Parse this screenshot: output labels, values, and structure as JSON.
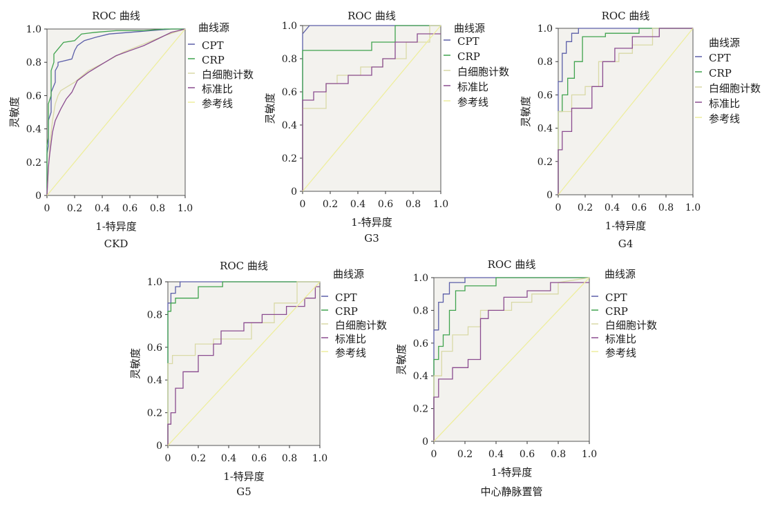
{
  "legend_title": "曲线源",
  "chart_title_text": "ROC 曲线",
  "ylabel": "灵敏度",
  "xlabel": "1-特异度",
  "colors": {
    "CPT": "#5b5ea8",
    "CRP": "#3fa34d",
    "white_blood_cell": "#d9d9a6",
    "ratio": "#8a4b8f",
    "reference": "#eeee9e",
    "plot_bg": "#f3f2ee"
  },
  "chart_data": [
    {
      "type": "line",
      "title": "ROC 曲线",
      "subtitle": "CKD",
      "xlabel": "1-特异度",
      "ylabel": "灵敏度",
      "xlim": [
        0,
        1
      ],
      "ylim": [
        0,
        1
      ],
      "x_ticks": [
        "0",
        "0.2",
        "0.4",
        "0.6",
        "0.8",
        "1.0"
      ],
      "y_ticks": [
        "0",
        "0.2",
        "0.4",
        "0.6",
        "0.8",
        "1.0"
      ],
      "legend_position": "right",
      "legend": [
        "CPT",
        "CRP",
        "白细胞计数",
        "标准比",
        "参考线"
      ],
      "series": [
        {
          "name": "CPT",
          "x": [
            0,
            0,
            0.01,
            0.01,
            0.03,
            0.03,
            0.06,
            0.06,
            0.08,
            0.08,
            0.18,
            0.2,
            0.22,
            0.27,
            0.35,
            0.45,
            0.6,
            0.75,
            0.9,
            1.0
          ],
          "y": [
            0,
            0.25,
            0.3,
            0.45,
            0.5,
            0.62,
            0.68,
            0.75,
            0.78,
            0.8,
            0.82,
            0.87,
            0.9,
            0.93,
            0.95,
            0.97,
            0.98,
            0.99,
            1.0,
            1.0
          ]
        },
        {
          "name": "CRP",
          "x": [
            0,
            0,
            0.01,
            0.01,
            0.03,
            0.03,
            0.05,
            0.05,
            0.08,
            0.12,
            0.2,
            0.25,
            0.35,
            0.5,
            0.7,
            0.85,
            1.0
          ],
          "y": [
            0,
            0.3,
            0.35,
            0.55,
            0.6,
            0.75,
            0.8,
            0.85,
            0.88,
            0.92,
            0.93,
            0.97,
            0.98,
            0.99,
            0.99,
            1.0,
            1.0
          ]
        },
        {
          "name": "白细胞计数",
          "x": [
            0,
            0.02,
            0.04,
            0.06,
            0.08,
            0.1,
            0.14,
            0.2,
            0.3,
            0.42,
            0.55,
            0.7,
            0.85,
            1.0
          ],
          "y": [
            0,
            0.3,
            0.45,
            0.55,
            0.6,
            0.63,
            0.65,
            0.68,
            0.75,
            0.8,
            0.86,
            0.91,
            0.96,
            1.0
          ]
        },
        {
          "name": "标准比",
          "x": [
            0,
            0.01,
            0.02,
            0.04,
            0.06,
            0.1,
            0.14,
            0.18,
            0.22,
            0.3,
            0.4,
            0.5,
            0.6,
            0.7,
            0.8,
            0.9,
            1.0
          ],
          "y": [
            0,
            0.17,
            0.25,
            0.38,
            0.45,
            0.52,
            0.58,
            0.62,
            0.69,
            0.74,
            0.79,
            0.84,
            0.87,
            0.9,
            0.94,
            0.98,
            1.0
          ]
        },
        {
          "name": "参考线",
          "x": [
            0,
            1
          ],
          "y": [
            0,
            1
          ]
        }
      ]
    },
    {
      "type": "line",
      "title": "ROC 曲线",
      "subtitle": "G3",
      "xlabel": "1-特异度",
      "ylabel": "灵敏度",
      "xlim": [
        0,
        1
      ],
      "ylim": [
        0,
        1
      ],
      "x_ticks": [
        "0",
        "0.2",
        "0.4",
        "0.6",
        "0.8",
        "1.0"
      ],
      "y_ticks": [
        "0",
        "0.2",
        "0.4",
        "0.6",
        "0.8",
        "1.0"
      ],
      "legend_position": "right",
      "legend": [
        "CPT",
        "CRP",
        "白细胞计数",
        "标准比",
        "参考线"
      ],
      "series": [
        {
          "name": "CPT",
          "x": [
            0,
            0,
            0.05,
            0.05,
            1.0
          ],
          "y": [
            0,
            0.95,
            1.0,
            1.0,
            1.0
          ]
        },
        {
          "name": "CRP",
          "x": [
            0,
            0,
            0.5,
            0.5,
            0.67,
            0.67,
            1.0
          ],
          "y": [
            0,
            0.85,
            0.85,
            0.9,
            0.9,
            1.0,
            1.0
          ]
        },
        {
          "name": "白细胞计数",
          "x": [
            0,
            0,
            0.17,
            0.17,
            0.25,
            0.25,
            0.42,
            0.42,
            0.58,
            0.58,
            0.75,
            0.75,
            0.92,
            0.92,
            1.0
          ],
          "y": [
            0,
            0.5,
            0.5,
            0.65,
            0.65,
            0.7,
            0.7,
            0.75,
            0.75,
            0.8,
            0.8,
            0.9,
            0.9,
            1.0,
            1.0
          ]
        },
        {
          "name": "标准比",
          "x": [
            0,
            0,
            0.08,
            0.08,
            0.17,
            0.17,
            0.33,
            0.33,
            0.5,
            0.5,
            0.58,
            0.58,
            0.67,
            0.67,
            0.83,
            0.83,
            1.0
          ],
          "y": [
            0,
            0.55,
            0.55,
            0.6,
            0.6,
            0.65,
            0.65,
            0.7,
            0.7,
            0.75,
            0.75,
            0.8,
            0.8,
            0.9,
            0.9,
            0.95,
            0.95
          ]
        },
        {
          "name": "参考线",
          "x": [
            0,
            1
          ],
          "y": [
            0,
            1
          ]
        }
      ]
    },
    {
      "type": "line",
      "title": "ROC 曲线",
      "subtitle": "G4",
      "xlabel": "1-特异度",
      "ylabel": "灵敏度",
      "xlim": [
        0,
        1
      ],
      "ylim": [
        0,
        1
      ],
      "x_ticks": [
        "0",
        "0.2",
        "0.4",
        "0.6",
        "0.8",
        "1.0"
      ],
      "y_ticks": [
        "0",
        "0.2",
        "0.4",
        "0.6",
        "0.8",
        "1.0"
      ],
      "legend_position": "right",
      "legend": [
        "曲线源",
        "CPT",
        "CRP",
        "白细胞计数",
        "标准比",
        "参考线"
      ],
      "series": [
        {
          "name": "CPT",
          "x": [
            0,
            0,
            0.03,
            0.03,
            0.06,
            0.06,
            0.1,
            0.1,
            0.15,
            0.15,
            1.0
          ],
          "y": [
            0,
            0.68,
            0.68,
            0.85,
            0.85,
            0.92,
            0.92,
            0.97,
            0.97,
            1.0,
            1.0
          ]
        },
        {
          "name": "CRP",
          "x": [
            0,
            0,
            0.03,
            0.03,
            0.07,
            0.07,
            0.12,
            0.12,
            0.18,
            0.18,
            0.35,
            0.35,
            0.6,
            0.6,
            1.0
          ],
          "y": [
            0,
            0.5,
            0.5,
            0.6,
            0.6,
            0.7,
            0.7,
            0.8,
            0.8,
            0.95,
            0.95,
            0.97,
            0.97,
            1.0,
            1.0
          ]
        },
        {
          "name": "白细胞计数",
          "x": [
            0,
            0,
            0.1,
            0.1,
            0.2,
            0.2,
            0.3,
            0.3,
            0.45,
            0.45,
            0.55,
            0.55,
            0.7,
            0.7,
            1.0
          ],
          "y": [
            0,
            0.5,
            0.5,
            0.6,
            0.6,
            0.65,
            0.65,
            0.8,
            0.8,
            0.85,
            0.85,
            0.9,
            0.9,
            1.0,
            1.0
          ]
        },
        {
          "name": "标准比",
          "x": [
            0,
            0,
            0.03,
            0.03,
            0.1,
            0.1,
            0.25,
            0.25,
            0.33,
            0.33,
            0.42,
            0.42,
            0.55,
            0.55,
            0.75,
            0.75,
            1.0
          ],
          "y": [
            0,
            0.27,
            0.27,
            0.38,
            0.38,
            0.52,
            0.52,
            0.65,
            0.65,
            0.8,
            0.8,
            0.88,
            0.88,
            0.95,
            0.95,
            1.0,
            1.0
          ]
        },
        {
          "name": "参考线",
          "x": [
            0,
            1
          ],
          "y": [
            0,
            1
          ]
        }
      ]
    },
    {
      "type": "line",
      "title": "ROC 曲线",
      "subtitle": "G5",
      "xlabel": "1-特异度",
      "ylabel": "灵敏度",
      "xlim": [
        0,
        1
      ],
      "ylim": [
        0,
        1
      ],
      "x_ticks": [
        "0",
        "0.2",
        "0.4",
        "0.6",
        "0.8",
        "1.0"
      ],
      "y_ticks": [
        "0",
        "0.2",
        "0.4",
        "0.6",
        "0.8",
        "1.0"
      ],
      "legend_position": "right",
      "legend": [
        "CPT",
        "CRP",
        "白细胞计数",
        "标准比",
        "参考线"
      ],
      "series": [
        {
          "name": "CPT",
          "x": [
            0,
            0,
            0.02,
            0.02,
            0.05,
            0.05,
            0.08,
            0.08,
            1.0
          ],
          "y": [
            0,
            0.87,
            0.87,
            0.93,
            0.93,
            0.97,
            0.97,
            1.0,
            1.0
          ]
        },
        {
          "name": "CRP",
          "x": [
            0,
            0,
            0.02,
            0.02,
            0.05,
            0.05,
            0.2,
            0.2,
            0.36,
            0.36,
            1.0
          ],
          "y": [
            0,
            0.82,
            0.82,
            0.87,
            0.87,
            0.9,
            0.9,
            0.97,
            0.97,
            1.0,
            1.0
          ]
        },
        {
          "name": "白细胞计数",
          "x": [
            0,
            0,
            0.03,
            0.03,
            0.18,
            0.18,
            0.3,
            0.3,
            0.55,
            0.55,
            0.7,
            0.7,
            0.85,
            0.85,
            1.0
          ],
          "y": [
            0,
            0.5,
            0.5,
            0.55,
            0.55,
            0.62,
            0.62,
            0.65,
            0.65,
            0.75,
            0.75,
            0.87,
            0.87,
            1.0,
            1.0
          ]
        },
        {
          "name": "标准比",
          "x": [
            0,
            0,
            0.02,
            0.02,
            0.05,
            0.05,
            0.1,
            0.1,
            0.2,
            0.2,
            0.3,
            0.3,
            0.35,
            0.35,
            0.5,
            0.5,
            0.62,
            0.62,
            0.78,
            0.78,
            0.9,
            0.9,
            0.97,
            0.97,
            1.0
          ],
          "y": [
            0,
            0.13,
            0.13,
            0.2,
            0.2,
            0.35,
            0.35,
            0.45,
            0.45,
            0.55,
            0.55,
            0.62,
            0.62,
            0.7,
            0.7,
            0.75,
            0.75,
            0.8,
            0.8,
            0.85,
            0.85,
            0.9,
            0.9,
            0.97,
            0.97
          ]
        },
        {
          "name": "参考线",
          "x": [
            0,
            1
          ],
          "y": [
            0,
            1
          ]
        }
      ]
    },
    {
      "type": "line",
      "title": "ROC 曲线",
      "subtitle": "中心静脉置管",
      "xlabel": "1-特异度",
      "ylabel": "灵敏度",
      "xlim": [
        0,
        1
      ],
      "ylim": [
        0,
        1
      ],
      "x_ticks": [
        "0",
        "0.2",
        "0.4",
        "0.6",
        "0.8",
        "1.0"
      ],
      "y_ticks": [
        "0",
        "0.2",
        "0.4",
        "0.6",
        "0.8",
        "1.0"
      ],
      "legend_position": "right",
      "legend": [
        "CPT",
        "CRP",
        "白细胞计数",
        "标准比",
        "参考线"
      ],
      "series": [
        {
          "name": "CPT",
          "x": [
            0,
            0,
            0.03,
            0.03,
            0.06,
            0.06,
            0.1,
            0.1,
            0.2,
            0.2,
            1.0
          ],
          "y": [
            0,
            0.68,
            0.68,
            0.85,
            0.85,
            0.9,
            0.9,
            0.97,
            0.97,
            1.0,
            1.0
          ]
        },
        {
          "name": "CRP",
          "x": [
            0,
            0,
            0.03,
            0.03,
            0.06,
            0.06,
            0.1,
            0.1,
            0.14,
            0.14,
            0.2,
            0.2,
            0.4,
            0.4,
            0.75,
            0.75,
            1.0
          ],
          "y": [
            0,
            0.5,
            0.5,
            0.58,
            0.58,
            0.65,
            0.65,
            0.8,
            0.8,
            0.92,
            0.92,
            0.95,
            0.95,
            1.0,
            1.0,
            1.0,
            1.0
          ]
        },
        {
          "name": "白细胞计数",
          "x": [
            0,
            0,
            0.05,
            0.05,
            0.12,
            0.12,
            0.22,
            0.22,
            0.3,
            0.3,
            0.5,
            0.5,
            0.63,
            0.63,
            0.8,
            0.8,
            1.0
          ],
          "y": [
            0,
            0.4,
            0.4,
            0.55,
            0.55,
            0.65,
            0.65,
            0.7,
            0.7,
            0.8,
            0.8,
            0.85,
            0.85,
            0.9,
            0.9,
            0.97,
            1.0
          ]
        },
        {
          "name": "标准比",
          "x": [
            0,
            0,
            0.03,
            0.03,
            0.12,
            0.12,
            0.22,
            0.22,
            0.3,
            0.3,
            0.35,
            0.35,
            0.45,
            0.45,
            0.6,
            0.6,
            0.75,
            0.75,
            1.0
          ],
          "y": [
            0,
            0.27,
            0.27,
            0.38,
            0.38,
            0.45,
            0.45,
            0.5,
            0.5,
            0.75,
            0.75,
            0.8,
            0.8,
            0.88,
            0.88,
            0.92,
            0.92,
            0.97,
            0.97
          ]
        },
        {
          "name": "参考线",
          "x": [
            0,
            1
          ],
          "y": [
            0,
            1
          ]
        }
      ]
    }
  ]
}
